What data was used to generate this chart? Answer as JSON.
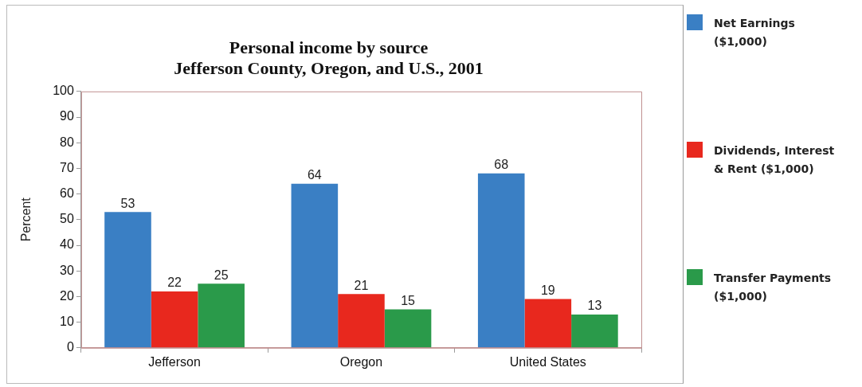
{
  "chart_data": {
    "type": "bar",
    "title": "Personal income by source\nJefferson County, Oregon, and U.S., 2001",
    "ylabel": "Percent",
    "categories": [
      "Jefferson",
      "Oregon",
      "United States"
    ],
    "series": [
      {
        "name": "Net Earnings ($1,000)",
        "color": "#3a7fc4",
        "values": [
          53,
          64,
          68
        ]
      },
      {
        "name": "Dividends, Interest & Rent ($1,000)",
        "color": "#e8281e",
        "values": [
          22,
          21,
          19
        ]
      },
      {
        "name": "Transfer Payments ($1,000)",
        "color": "#2a9a4a",
        "values": [
          25,
          15,
          13
        ]
      }
    ],
    "ylim": [
      0,
      100
    ],
    "yticks": [
      0,
      10,
      20,
      30,
      40,
      50,
      60,
      70,
      80,
      90,
      100
    ],
    "grid": false,
    "legend": "right",
    "data_labels": true
  }
}
